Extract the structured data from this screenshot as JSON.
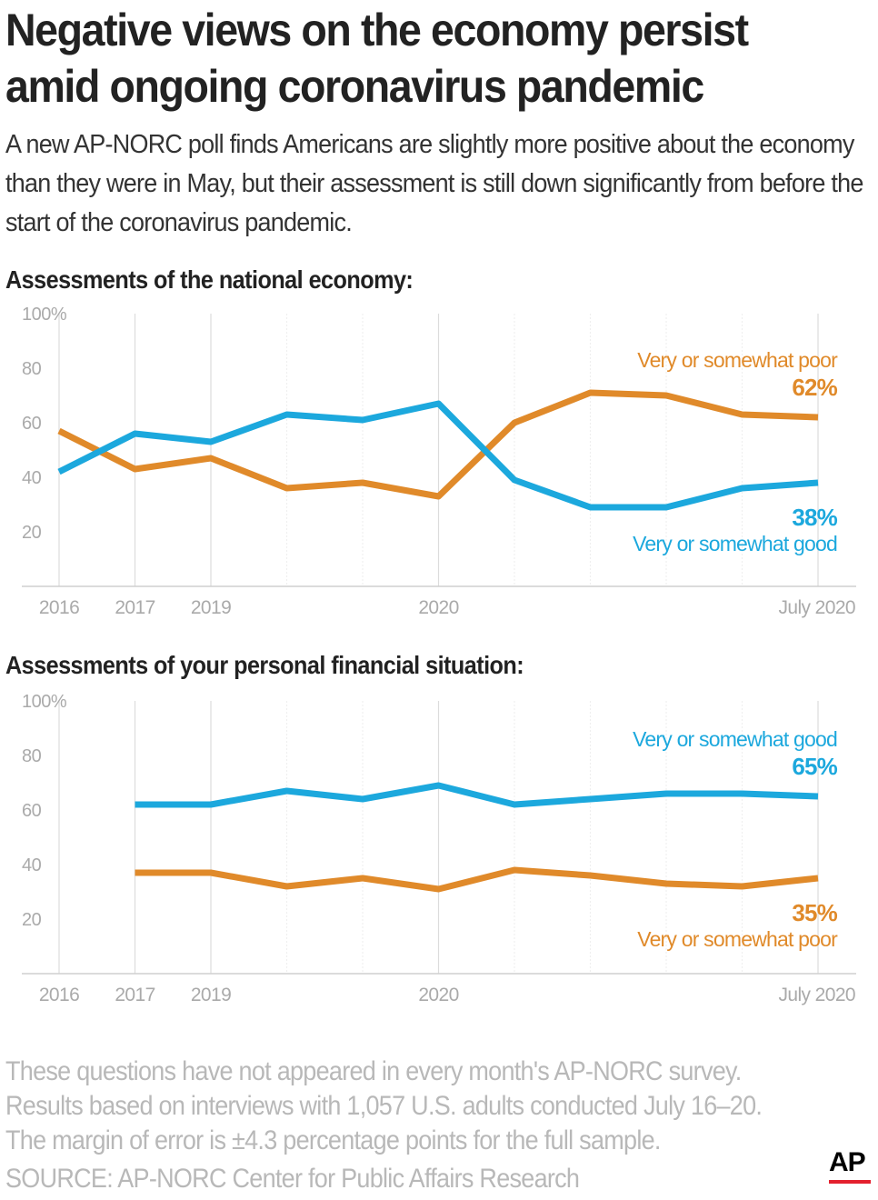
{
  "title": "Negative views on the economy persist amid ongoing coronavirus pandemic",
  "subtitle": "A new AP-NORC poll finds Americans are slightly more positive about the economy than they were in May, but their assessment is still down significantly from before the start of the coronavirus pandemic.",
  "colors": {
    "poor": "#e08a2a",
    "good": "#1ca8dd",
    "grid": "#dddddd",
    "axis_text": "#aaaaaa"
  },
  "chart_data": [
    {
      "type": "line",
      "title": "Assessments of the national economy:",
      "x_tick_labels": [
        "2016",
        "2017",
        "2019",
        "",
        "",
        "2020",
        "",
        "",
        "",
        "",
        "July 2020"
      ],
      "y_ticks": [
        "100%",
        "80",
        "60",
        "40",
        "20"
      ],
      "ylim": [
        0,
        100
      ],
      "series": [
        {
          "name": "Very or somewhat poor",
          "key": "poor",
          "end_label": "62%",
          "values": [
            57,
            43,
            47,
            36,
            38,
            33,
            60,
            71,
            70,
            63,
            62
          ]
        },
        {
          "name": "Very or somewhat good",
          "key": "good",
          "end_label": "38%",
          "values": [
            42,
            56,
            53,
            63,
            61,
            67,
            39,
            29,
            29,
            36,
            38
          ]
        }
      ]
    },
    {
      "type": "line",
      "title": "Assessments of your personal financial situation:",
      "x_tick_labels": [
        "2016",
        "2017",
        "2019",
        "",
        "",
        "2020",
        "",
        "",
        "",
        "",
        "July 2020"
      ],
      "y_ticks": [
        "100%",
        "80",
        "60",
        "40",
        "20"
      ],
      "ylim": [
        0,
        100
      ],
      "series": [
        {
          "name": "Very or somewhat good",
          "key": "good",
          "end_label": "65%",
          "values": [
            null,
            62,
            62,
            67,
            64,
            69,
            62,
            64,
            66,
            66,
            65
          ]
        },
        {
          "name": "Very or somewhat poor",
          "key": "poor",
          "end_label": "35%",
          "values": [
            null,
            37,
            37,
            32,
            35,
            31,
            38,
            36,
            33,
            32,
            35
          ]
        }
      ]
    }
  ],
  "notes": [
    "These questions have not appeared in every month's AP-NORC survey.",
    "Results based on interviews with 1,057 U.S. adults conducted July 16–20.",
    "The margin of error is ±4.3 percentage points for the full sample.",
    "SOURCE: AP-NORC Center for Public Affairs Research"
  ],
  "logo": "AP"
}
